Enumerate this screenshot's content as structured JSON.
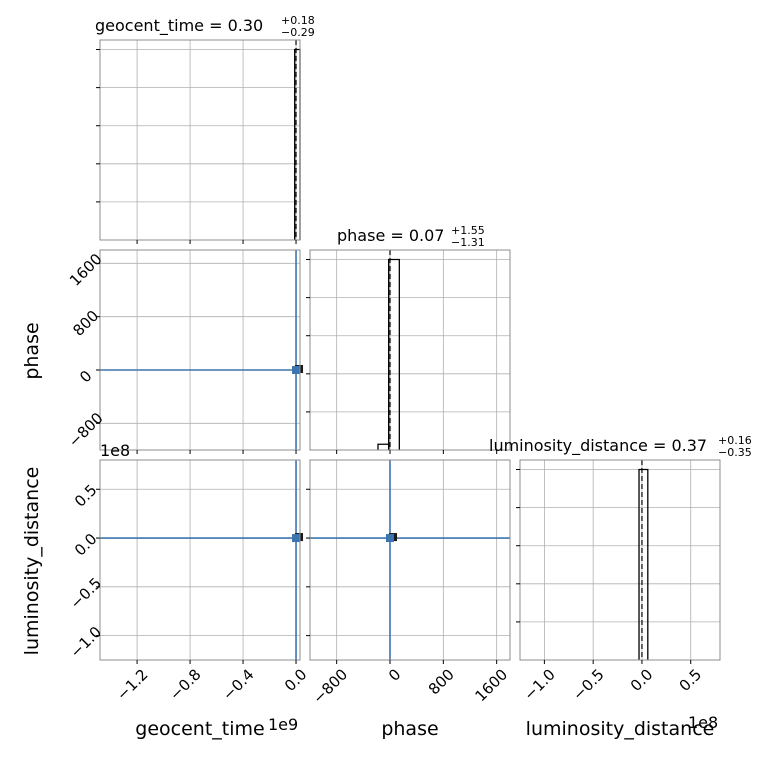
{
  "chart_data": {
    "type": "corner",
    "parameters": [
      "geocent_time",
      "phase",
      "luminosity_distance"
    ],
    "color_truth": "#3b75af",
    "color_hist": "#000000",
    "panels": [
      {
        "id": "geocent_time-hist",
        "kind": "hist",
        "title_name": "geocent_time",
        "title_value": "0.30",
        "title_plus": "+0.18",
        "title_minus": "−0.29",
        "x_range": [
          -1480000000,
          30000000
        ],
        "bins": [
          {
            "x0": -10000000,
            "x1": 30000000,
            "h": 1.0
          }
        ],
        "median": 0.3,
        "quantiles": [
          0.01,
          0.48
        ],
        "x_ticks": [
          -1200000000,
          -800000000,
          -400000000,
          0
        ],
        "y_ticks": [
          0.2,
          0.4,
          0.6,
          0.8,
          1.0
        ]
      },
      {
        "id": "phase-hist",
        "kind": "hist",
        "title_name": "phase",
        "title_value": "0.07",
        "title_plus": "+1.55",
        "title_minus": "−1.31",
        "x_range": [
          -1200,
          1800
        ],
        "bins": [
          {
            "x0": -180,
            "x1": -20,
            "h": 0.03
          },
          {
            "x0": -20,
            "x1": 140,
            "h": 1.0
          }
        ],
        "median": 0.07,
        "quantiles": [
          -1.24,
          1.62
        ],
        "x_ticks": [
          -800,
          0,
          800,
          1600
        ],
        "y_ticks": [
          0.2,
          0.4,
          0.6,
          0.8,
          1.0
        ]
      },
      {
        "id": "luminosity_distance-hist",
        "kind": "hist",
        "title_name": "luminosity_distance",
        "title_value": "0.37",
        "title_plus": "+0.16",
        "title_minus": "−0.35",
        "x_range": [
          -125000000,
          80000000
        ],
        "bins": [
          {
            "x0": -3000000,
            "x1": 6000000,
            "h": 1.0
          }
        ],
        "median": 0.37,
        "quantiles": [
          0.02,
          0.53
        ],
        "x_ticks": [
          -100000000,
          -50000000,
          0,
          50000000
        ],
        "y_ticks": [
          0.2,
          0.4,
          0.6,
          0.8,
          1.0
        ]
      },
      {
        "id": "phase-vs-geocent_time",
        "kind": "scatter2d",
        "x_param": "geocent_time",
        "y_param": "phase",
        "x_range": [
          -1480000000,
          30000000
        ],
        "y_range": [
          -1200,
          1800
        ],
        "truth": [
          0,
          0
        ],
        "points": [
          [
            0,
            0
          ]
        ],
        "y_ticks": [
          -800,
          0,
          800,
          1600
        ]
      },
      {
        "id": "luminosity_distance-vs-geocent_time",
        "kind": "scatter2d",
        "x_param": "geocent_time",
        "y_param": "luminosity_distance",
        "x_range": [
          -1480000000,
          30000000
        ],
        "y_range": [
          -125000000,
          80000000
        ],
        "truth": [
          0,
          0
        ],
        "points": [
          [
            0,
            0
          ]
        ],
        "x_ticks": [
          -1200000000,
          -800000000,
          -400000000,
          0
        ],
        "y_ticks": [
          -100000000,
          -50000000,
          0,
          50000000
        ]
      },
      {
        "id": "luminosity_distance-vs-phase",
        "kind": "scatter2d",
        "x_param": "phase",
        "y_param": "luminosity_distance",
        "x_range": [
          -1200,
          1800
        ],
        "y_range": [
          -125000000,
          80000000
        ],
        "truth": [
          0,
          0
        ],
        "points": [
          [
            0,
            0
          ]
        ],
        "x_ticks": [
          -800,
          0,
          800,
          1600
        ]
      }
    ],
    "tick_labels": {
      "geocent_time": [
        "−1.2",
        "−0.8",
        "−0.4",
        "0.0"
      ],
      "phase": [
        "−800",
        "0",
        "800",
        "1600"
      ],
      "luminosity_distance": [
        "−1.0",
        "−0.5",
        "0.0",
        "0.5"
      ]
    },
    "axis_labels": {
      "x_geocent_time": "geocent_time",
      "x_phase": "phase",
      "x_luminosity_distance": "luminosity_distance",
      "y_phase": "phase",
      "y_luminosity_distance": "luminosity_distance"
    },
    "offset_labels": {
      "geocent_time_x": "1e9",
      "luminosity_distance_x": "1e8",
      "luminosity_distance_y": "1e8"
    },
    "grid": true
  }
}
